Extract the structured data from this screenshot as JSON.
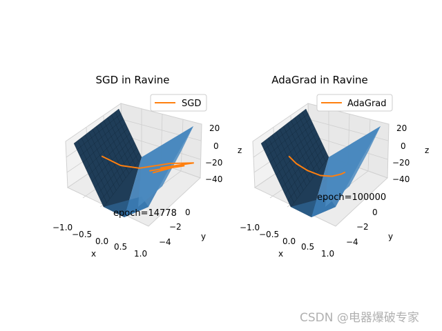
{
  "chart_data": [
    {
      "type": "surface3d",
      "title": "SGD in Ravine",
      "xlabel": "x",
      "ylabel": "y",
      "zlabel": "z",
      "xlim": [
        -1.0,
        1.0
      ],
      "ylim": [
        -5.0,
        2.0
      ],
      "zlim": [
        -45,
        25
      ],
      "x_ticks": [
        "−1.0",
        "−0.5",
        "0.0",
        "0.5",
        "1.0"
      ],
      "y_ticks": [
        "0",
        "−2",
        "−4"
      ],
      "z_ticks": [
        "20",
        "0",
        "−20",
        "−40"
      ],
      "legend": {
        "label": "SGD",
        "position": "upper right"
      },
      "annotation": "epoch=14778",
      "series": [
        {
          "name": "SGD",
          "color": "#ff7f0e",
          "path": [
            [
              -0.45,
              -4.9,
              25
            ],
            [
              -0.25,
              -3.2,
              8
            ],
            [
              0.0,
              -1.8,
              -2
            ],
            [
              0.35,
              0.8,
              -12
            ],
            [
              0.85,
              1.8,
              -18
            ],
            [
              0.1,
              0.6,
              -14
            ],
            [
              0.7,
              1.2,
              -17
            ],
            [
              -0.1,
              0.0,
              -13
            ],
            [
              0.5,
              1.0,
              -16
            ],
            [
              0.0,
              0.0,
              -15
            ]
          ]
        }
      ],
      "surface": {
        "color": "#1f77b4",
        "grid": true
      }
    },
    {
      "type": "surface3d",
      "title": "AdaGrad in Ravine",
      "xlabel": "x",
      "ylabel": "y",
      "zlabel": "z",
      "xlim": [
        -1.0,
        1.0
      ],
      "ylim": [
        -5.0,
        2.0
      ],
      "zlim": [
        -45,
        25
      ],
      "x_ticks": [
        "−1.0",
        "−0.5",
        "0.0",
        "0.5",
        "1.0"
      ],
      "y_ticks": [
        "0",
        "−2",
        "−4"
      ],
      "z_ticks": [
        "20",
        "0",
        "−20",
        "−40"
      ],
      "legend": {
        "label": "AdaGrad",
        "position": "upper right"
      },
      "annotation": "epoch=100000",
      "series": [
        {
          "name": "AdaGrad",
          "color": "#ff7f0e",
          "path": [
            [
              -0.45,
              -4.9,
              25
            ],
            [
              -0.42,
              -4.0,
              14
            ],
            [
              -0.35,
              -2.8,
              2
            ],
            [
              -0.25,
              -1.5,
              -9
            ],
            [
              -0.12,
              -0.5,
              -15
            ],
            [
              0.0,
              0.2,
              -17
            ],
            [
              0.05,
              0.5,
              -17
            ]
          ]
        }
      ],
      "surface": {
        "color": "#1f77b4",
        "grid": true
      }
    }
  ],
  "watermark": "CSDN @电器爆破专家"
}
